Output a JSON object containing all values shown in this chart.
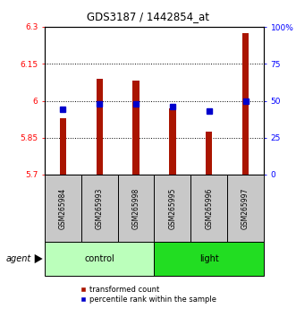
{
  "title": "GDS3187 / 1442854_at",
  "samples": [
    "GSM265984",
    "GSM265993",
    "GSM265998",
    "GSM265995",
    "GSM265996",
    "GSM265997"
  ],
  "red_values": [
    5.93,
    6.09,
    6.08,
    5.97,
    5.875,
    6.275
  ],
  "blue_values_pct": [
    44,
    48,
    48,
    46,
    43,
    50
  ],
  "ylim_left": [
    5.7,
    6.3
  ],
  "ylim_right": [
    0,
    100
  ],
  "yticks_left": [
    5.7,
    5.85,
    6.0,
    6.15,
    6.3
  ],
  "ytick_labels_left": [
    "5.7",
    "5.85",
    "6",
    "6.15",
    "6.3"
  ],
  "yticks_right": [
    0,
    25,
    50,
    75,
    100
  ],
  "ytick_labels_right": [
    "0",
    "25",
    "50",
    "75",
    "100%"
  ],
  "hlines": [
    5.85,
    6.0,
    6.15
  ],
  "control_indices": [
    0,
    1,
    2
  ],
  "light_indices": [
    3,
    4,
    5
  ],
  "bar_color": "#AA1500",
  "blue_color": "#0000CC",
  "control_color": "#BBFFBB",
  "light_color": "#22DD22",
  "group_bg_color": "#C8C8C8",
  "bar_width": 0.18,
  "bar_bottom": 5.7,
  "legend_red_label": "transformed count",
  "legend_blue_label": "percentile rank within the sample",
  "agent_label": "agent",
  "control_label": "control",
  "light_label": "light"
}
